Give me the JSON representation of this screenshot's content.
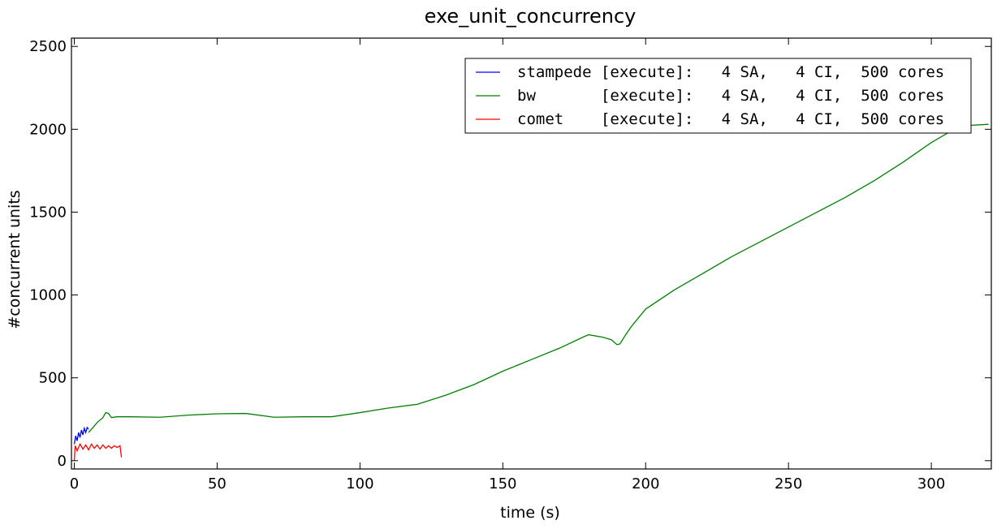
{
  "chart_data": {
    "type": "line",
    "title": "exe_unit_concurrency",
    "xlabel": "time (s)",
    "ylabel": "#concurrent units",
    "xlim": [
      -1,
      321
    ],
    "ylim": [
      -50,
      2550
    ],
    "xticks": [
      0,
      50,
      100,
      150,
      200,
      250,
      300
    ],
    "yticks": [
      0,
      500,
      1000,
      1500,
      2000,
      2500
    ],
    "grid": false,
    "legend_position": "top-right",
    "series": [
      {
        "name": "stampede [execute]:   4 SA,   4 CI,  500 cores",
        "color": "#0000ff",
        "points": [
          [
            0,
            100
          ],
          [
            0.5,
            150
          ],
          [
            1,
            120
          ],
          [
            1.5,
            170
          ],
          [
            2,
            140
          ],
          [
            2.5,
            185
          ],
          [
            3,
            155
          ],
          [
            3.5,
            195
          ],
          [
            4,
            170
          ],
          [
            4.5,
            200
          ],
          [
            5,
            190
          ]
        ]
      },
      {
        "name": "bw       [execute]:   4 SA,   4 CI,  500 cores",
        "color": "#008000",
        "points": [
          [
            5,
            170
          ],
          [
            8,
            230
          ],
          [
            10,
            260
          ],
          [
            11,
            290
          ],
          [
            12,
            285
          ],
          [
            13,
            260
          ],
          [
            15,
            265
          ],
          [
            20,
            265
          ],
          [
            30,
            262
          ],
          [
            40,
            275
          ],
          [
            50,
            283
          ],
          [
            60,
            285
          ],
          [
            70,
            262
          ],
          [
            80,
            265
          ],
          [
            90,
            265
          ],
          [
            100,
            290
          ],
          [
            110,
            318
          ],
          [
            120,
            340
          ],
          [
            130,
            395
          ],
          [
            140,
            460
          ],
          [
            150,
            540
          ],
          [
            160,
            610
          ],
          [
            170,
            680
          ],
          [
            178,
            745
          ],
          [
            180,
            760
          ],
          [
            185,
            745
          ],
          [
            188,
            730
          ],
          [
            190,
            700
          ],
          [
            191,
            705
          ],
          [
            193,
            760
          ],
          [
            195,
            810
          ],
          [
            200,
            915
          ],
          [
            210,
            1030
          ],
          [
            220,
            1130
          ],
          [
            230,
            1230
          ],
          [
            240,
            1320
          ],
          [
            250,
            1410
          ],
          [
            260,
            1500
          ],
          [
            270,
            1590
          ],
          [
            280,
            1690
          ],
          [
            290,
            1800
          ],
          [
            300,
            1920
          ],
          [
            310,
            2020
          ],
          [
            320,
            2030
          ]
        ]
      },
      {
        "name": "comet    [execute]:   4 SA,   4 CI,  500 cores",
        "color": "#ff0000",
        "points": [
          [
            0,
            0
          ],
          [
            0.3,
            90
          ],
          [
            1,
            60
          ],
          [
            2,
            100
          ],
          [
            3,
            70
          ],
          [
            4,
            95
          ],
          [
            5,
            65
          ],
          [
            6,
            100
          ],
          [
            7,
            75
          ],
          [
            8,
            95
          ],
          [
            9,
            70
          ],
          [
            10,
            95
          ],
          [
            11,
            75
          ],
          [
            12,
            90
          ],
          [
            13,
            75
          ],
          [
            14,
            90
          ],
          [
            15,
            80
          ],
          [
            16,
            90
          ],
          [
            16.5,
            20
          ]
        ]
      }
    ]
  }
}
